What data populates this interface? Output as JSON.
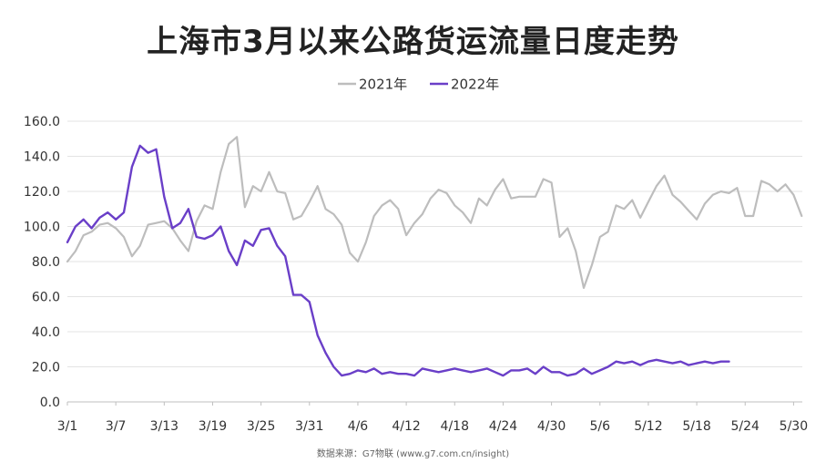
{
  "chart_data": {
    "type": "line",
    "title": "上海市3月以来公路货运流量日度走势",
    "source": "数据来源：G7物联 (www.g7.com.cn/insight)",
    "xlabel": "",
    "ylabel": "",
    "ylim": [
      0,
      160
    ],
    "yticks": [
      "0.0",
      "20.0",
      "40.0",
      "60.0",
      "80.0",
      "100.0",
      "120.0",
      "140.0",
      "160.0"
    ],
    "xticks": [
      "3/1",
      "3/7",
      "3/13",
      "3/19",
      "3/25",
      "3/31",
      "4/6",
      "4/12",
      "4/18",
      "4/24",
      "4/30",
      "5/6",
      "5/12",
      "5/18",
      "5/24",
      "5/30"
    ],
    "grid": true,
    "legend_position": "top-center",
    "series": [
      {
        "name": "2021年",
        "color": "#bdbdbd",
        "start_index": 0,
        "values": [
          80,
          86,
          95,
          97,
          101,
          102,
          99,
          94,
          83,
          89,
          101,
          102,
          103,
          99,
          92,
          86,
          103,
          112,
          110,
          131,
          147,
          151,
          111,
          123,
          120,
          131,
          120,
          119,
          104,
          106,
          114,
          123,
          110,
          107,
          101,
          85,
          80,
          91,
          106,
          112,
          115,
          110,
          95,
          102,
          107,
          116,
          121,
          119,
          112,
          108,
          102,
          116,
          112,
          121,
          127,
          116,
          117,
          117,
          117,
          127,
          125,
          94,
          99,
          86,
          65,
          78,
          94,
          97,
          112,
          110,
          115,
          105,
          114,
          123,
          129,
          118,
          114,
          109,
          104,
          113,
          118,
          120,
          119,
          122,
          106,
          106,
          126,
          124,
          120,
          124,
          118,
          106
        ]
      },
      {
        "name": "2022年",
        "color": "#6a3fc8",
        "start_index": 0,
        "values": [
          91,
          100,
          104,
          99,
          105,
          108,
          104,
          108,
          134,
          146,
          142,
          144,
          117,
          99,
          102,
          110,
          94,
          93,
          95,
          100,
          86,
          78,
          92,
          89,
          98,
          99,
          89,
          83,
          61,
          61,
          57,
          38,
          28,
          20,
          15,
          16,
          18,
          17,
          19,
          16,
          17,
          16,
          16,
          15,
          19,
          18,
          17,
          18,
          19,
          18,
          17,
          18,
          19,
          17,
          15,
          18,
          18,
          19,
          16,
          20,
          17,
          17,
          15,
          16,
          19,
          16,
          18,
          20,
          23,
          22,
          23,
          21,
          23,
          24,
          23,
          22,
          23,
          21,
          22,
          23,
          22,
          23,
          23
        ]
      }
    ]
  }
}
